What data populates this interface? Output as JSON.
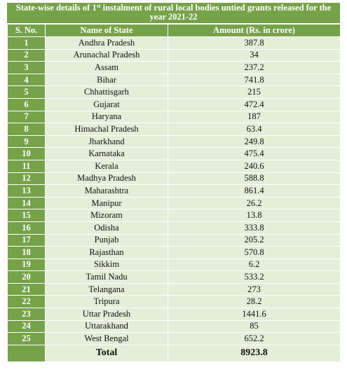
{
  "title_pre": "State-wise details of 1",
  "title_sup": "st",
  "title_post": " instalment of rural local bodies untied grants released for the year 2021-22",
  "columns": {
    "sno": "S. No.",
    "state": "Name of State",
    "amount": "Amount (Rs. in crore)"
  },
  "rows": [
    {
      "sno": "1",
      "state": "Andhra Pradesh",
      "amount": "387.8"
    },
    {
      "sno": "2",
      "state": "Arunachal Pradesh",
      "amount": "34"
    },
    {
      "sno": "3",
      "state": "Assam",
      "amount": "237.2"
    },
    {
      "sno": "4",
      "state": "Bihar",
      "amount": "741.8"
    },
    {
      "sno": "5",
      "state": "Chhattisgarh",
      "amount": "215"
    },
    {
      "sno": "6",
      "state": "Gujarat",
      "amount": "472.4"
    },
    {
      "sno": "7",
      "state": "Haryana",
      "amount": "187"
    },
    {
      "sno": "8",
      "state": "Himachal Pradesh",
      "amount": "63.4"
    },
    {
      "sno": "9",
      "state": "Jharkhand",
      "amount": "249.8"
    },
    {
      "sno": "10",
      "state": "Karnataka",
      "amount": "475.4"
    },
    {
      "sno": "11",
      "state": "Kerala",
      "amount": "240.6"
    },
    {
      "sno": "12",
      "state": "Madhya Pradesh",
      "amount": "588.8"
    },
    {
      "sno": "13",
      "state": "Maharashtra",
      "amount": "861.4"
    },
    {
      "sno": "14",
      "state": "Manipur",
      "amount": "26.2"
    },
    {
      "sno": "15",
      "state": "Mizoram",
      "amount": "13.8"
    },
    {
      "sno": "16",
      "state": "Odisha",
      "amount": "333.8"
    },
    {
      "sno": "17",
      "state": "Punjab",
      "amount": "205.2"
    },
    {
      "sno": "18",
      "state": "Rajasthan",
      "amount": "570.8"
    },
    {
      "sno": "19",
      "state": "Sikkim",
      "amount": "6.2"
    },
    {
      "sno": "20",
      "state": "Tamil Nadu",
      "amount": "533.2"
    },
    {
      "sno": "21",
      "state": "Telangana",
      "amount": "273"
    },
    {
      "sno": "22",
      "state": "Tripura",
      "amount": "28.2"
    },
    {
      "sno": "23",
      "state": "Uttar Pradesh",
      "amount": "1441.6"
    },
    {
      "sno": "24",
      "state": "Uttarakhand",
      "amount": "85"
    },
    {
      "sno": "25",
      "state": "West Bengal",
      "amount": "652.2"
    }
  ],
  "total": {
    "label": "Total",
    "amount": "8923.8"
  },
  "colors": {
    "header_green": "#76a24a",
    "row_tint": "#e4eed8"
  }
}
